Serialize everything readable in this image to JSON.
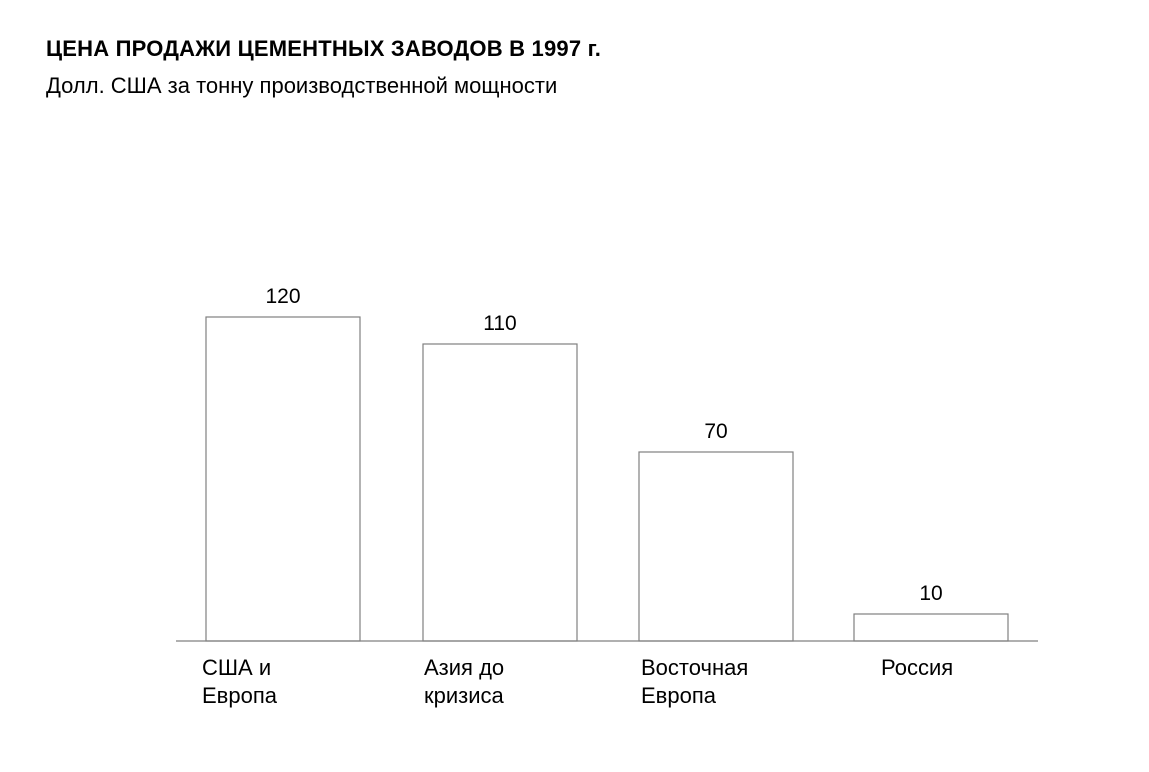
{
  "title": "ЦЕНА ПРОДАЖИ ЦЕМЕНТНЫХ ЗАВОДОВ В 1997 г.",
  "subtitle": "Долл. США за тонну производственной мощности",
  "chart_data": {
    "type": "bar",
    "title": "ЦЕНА ПРОДАЖИ ЦЕМЕНТНЫХ ЗАВОДОВ В 1997 г.",
    "subtitle": "Долл. США за тонну производственной мощности",
    "categories": [
      "США и\nЕвропа",
      "Азия до\nкризиса",
      "Восточная\nЕвропа",
      "Россия"
    ],
    "values": [
      120,
      110,
      70,
      10
    ],
    "data_labels": [
      "120",
      "110",
      "70",
      "10"
    ],
    "xlabel": "",
    "ylabel": "",
    "ylim": [
      0,
      120
    ],
    "grid": false,
    "legend": "none",
    "colors": {
      "bar_fill": "#ffffff",
      "bar_stroke": "#808080",
      "axis": "#808080",
      "text": "#000000"
    }
  }
}
